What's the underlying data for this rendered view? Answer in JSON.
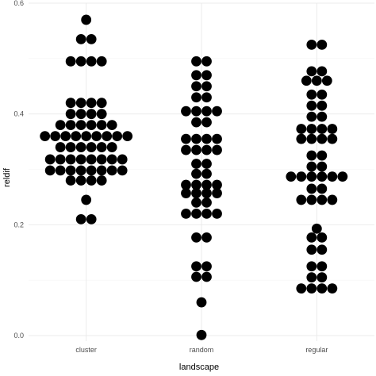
{
  "chart_data": {
    "type": "dotplot",
    "xlabel": "landscape",
    "ylabel": "reldif",
    "ylim": [
      -0.01,
      0.6
    ],
    "yticks": [
      "0.0",
      "0.2",
      "0.4",
      "0.6"
    ],
    "ytick_values": [
      0.0,
      0.2,
      0.4,
      0.6
    ],
    "categories": [
      "cluster",
      "random",
      "regular"
    ],
    "grid": true,
    "dot_color": "#000000",
    "rows": [
      {
        "category": "cluster",
        "y": 0.57,
        "n": 1
      },
      {
        "category": "cluster",
        "y": 0.535,
        "n": 2
      },
      {
        "category": "cluster",
        "y": 0.495,
        "n": 4
      },
      {
        "category": "cluster",
        "y": 0.42,
        "n": 4
      },
      {
        "category": "cluster",
        "y": 0.4,
        "n": 4
      },
      {
        "category": "cluster",
        "y": 0.38,
        "n": 6
      },
      {
        "category": "cluster",
        "y": 0.36,
        "n": 9
      },
      {
        "category": "cluster",
        "y": 0.34,
        "n": 6
      },
      {
        "category": "cluster",
        "y": 0.318,
        "n": 8
      },
      {
        "category": "cluster",
        "y": 0.298,
        "n": 8
      },
      {
        "category": "cluster",
        "y": 0.28,
        "n": 4
      },
      {
        "category": "cluster",
        "y": 0.245,
        "n": 1
      },
      {
        "category": "cluster",
        "y": 0.21,
        "n": 2
      },
      {
        "category": "random",
        "y": 0.495,
        "n": 2
      },
      {
        "category": "random",
        "y": 0.47,
        "n": 2
      },
      {
        "category": "random",
        "y": 0.45,
        "n": 2
      },
      {
        "category": "random",
        "y": 0.43,
        "n": 2
      },
      {
        "category": "random",
        "y": 0.405,
        "n": 4
      },
      {
        "category": "random",
        "y": 0.385,
        "n": 2
      },
      {
        "category": "random",
        "y": 0.355,
        "n": 4
      },
      {
        "category": "random",
        "y": 0.335,
        "n": 4
      },
      {
        "category": "random",
        "y": 0.31,
        "n": 2
      },
      {
        "category": "random",
        "y": 0.292,
        "n": 2
      },
      {
        "category": "random",
        "y": 0.272,
        "n": 4
      },
      {
        "category": "random",
        "y": 0.257,
        "n": 4
      },
      {
        "category": "random",
        "y": 0.24,
        "n": 2
      },
      {
        "category": "random",
        "y": 0.22,
        "n": 4
      },
      {
        "category": "random",
        "y": 0.177,
        "n": 2
      },
      {
        "category": "random",
        "y": 0.125,
        "n": 2
      },
      {
        "category": "random",
        "y": 0.106,
        "n": 2
      },
      {
        "category": "random",
        "y": 0.06,
        "n": 1
      },
      {
        "category": "random",
        "y": 0.001,
        "n": 1
      },
      {
        "category": "regular",
        "y": 0.525,
        "n": 2
      },
      {
        "category": "regular",
        "y": 0.477,
        "n": 2
      },
      {
        "category": "regular",
        "y": 0.46,
        "n": 3
      },
      {
        "category": "regular",
        "y": 0.435,
        "n": 2
      },
      {
        "category": "regular",
        "y": 0.415,
        "n": 2
      },
      {
        "category": "regular",
        "y": 0.395,
        "n": 2
      },
      {
        "category": "regular",
        "y": 0.373,
        "n": 4
      },
      {
        "category": "regular",
        "y": 0.355,
        "n": 4
      },
      {
        "category": "regular",
        "y": 0.325,
        "n": 2
      },
      {
        "category": "regular",
        "y": 0.305,
        "n": 2
      },
      {
        "category": "regular",
        "y": 0.287,
        "n": 6
      },
      {
        "category": "regular",
        "y": 0.265,
        "n": 2
      },
      {
        "category": "regular",
        "y": 0.245,
        "n": 4
      },
      {
        "category": "regular",
        "y": 0.193,
        "n": 1
      },
      {
        "category": "regular",
        "y": 0.177,
        "n": 2
      },
      {
        "category": "regular",
        "y": 0.155,
        "n": 2
      },
      {
        "category": "regular",
        "y": 0.125,
        "n": 2
      },
      {
        "category": "regular",
        "y": 0.105,
        "n": 2
      },
      {
        "category": "regular",
        "y": 0.085,
        "n": 4
      }
    ]
  }
}
